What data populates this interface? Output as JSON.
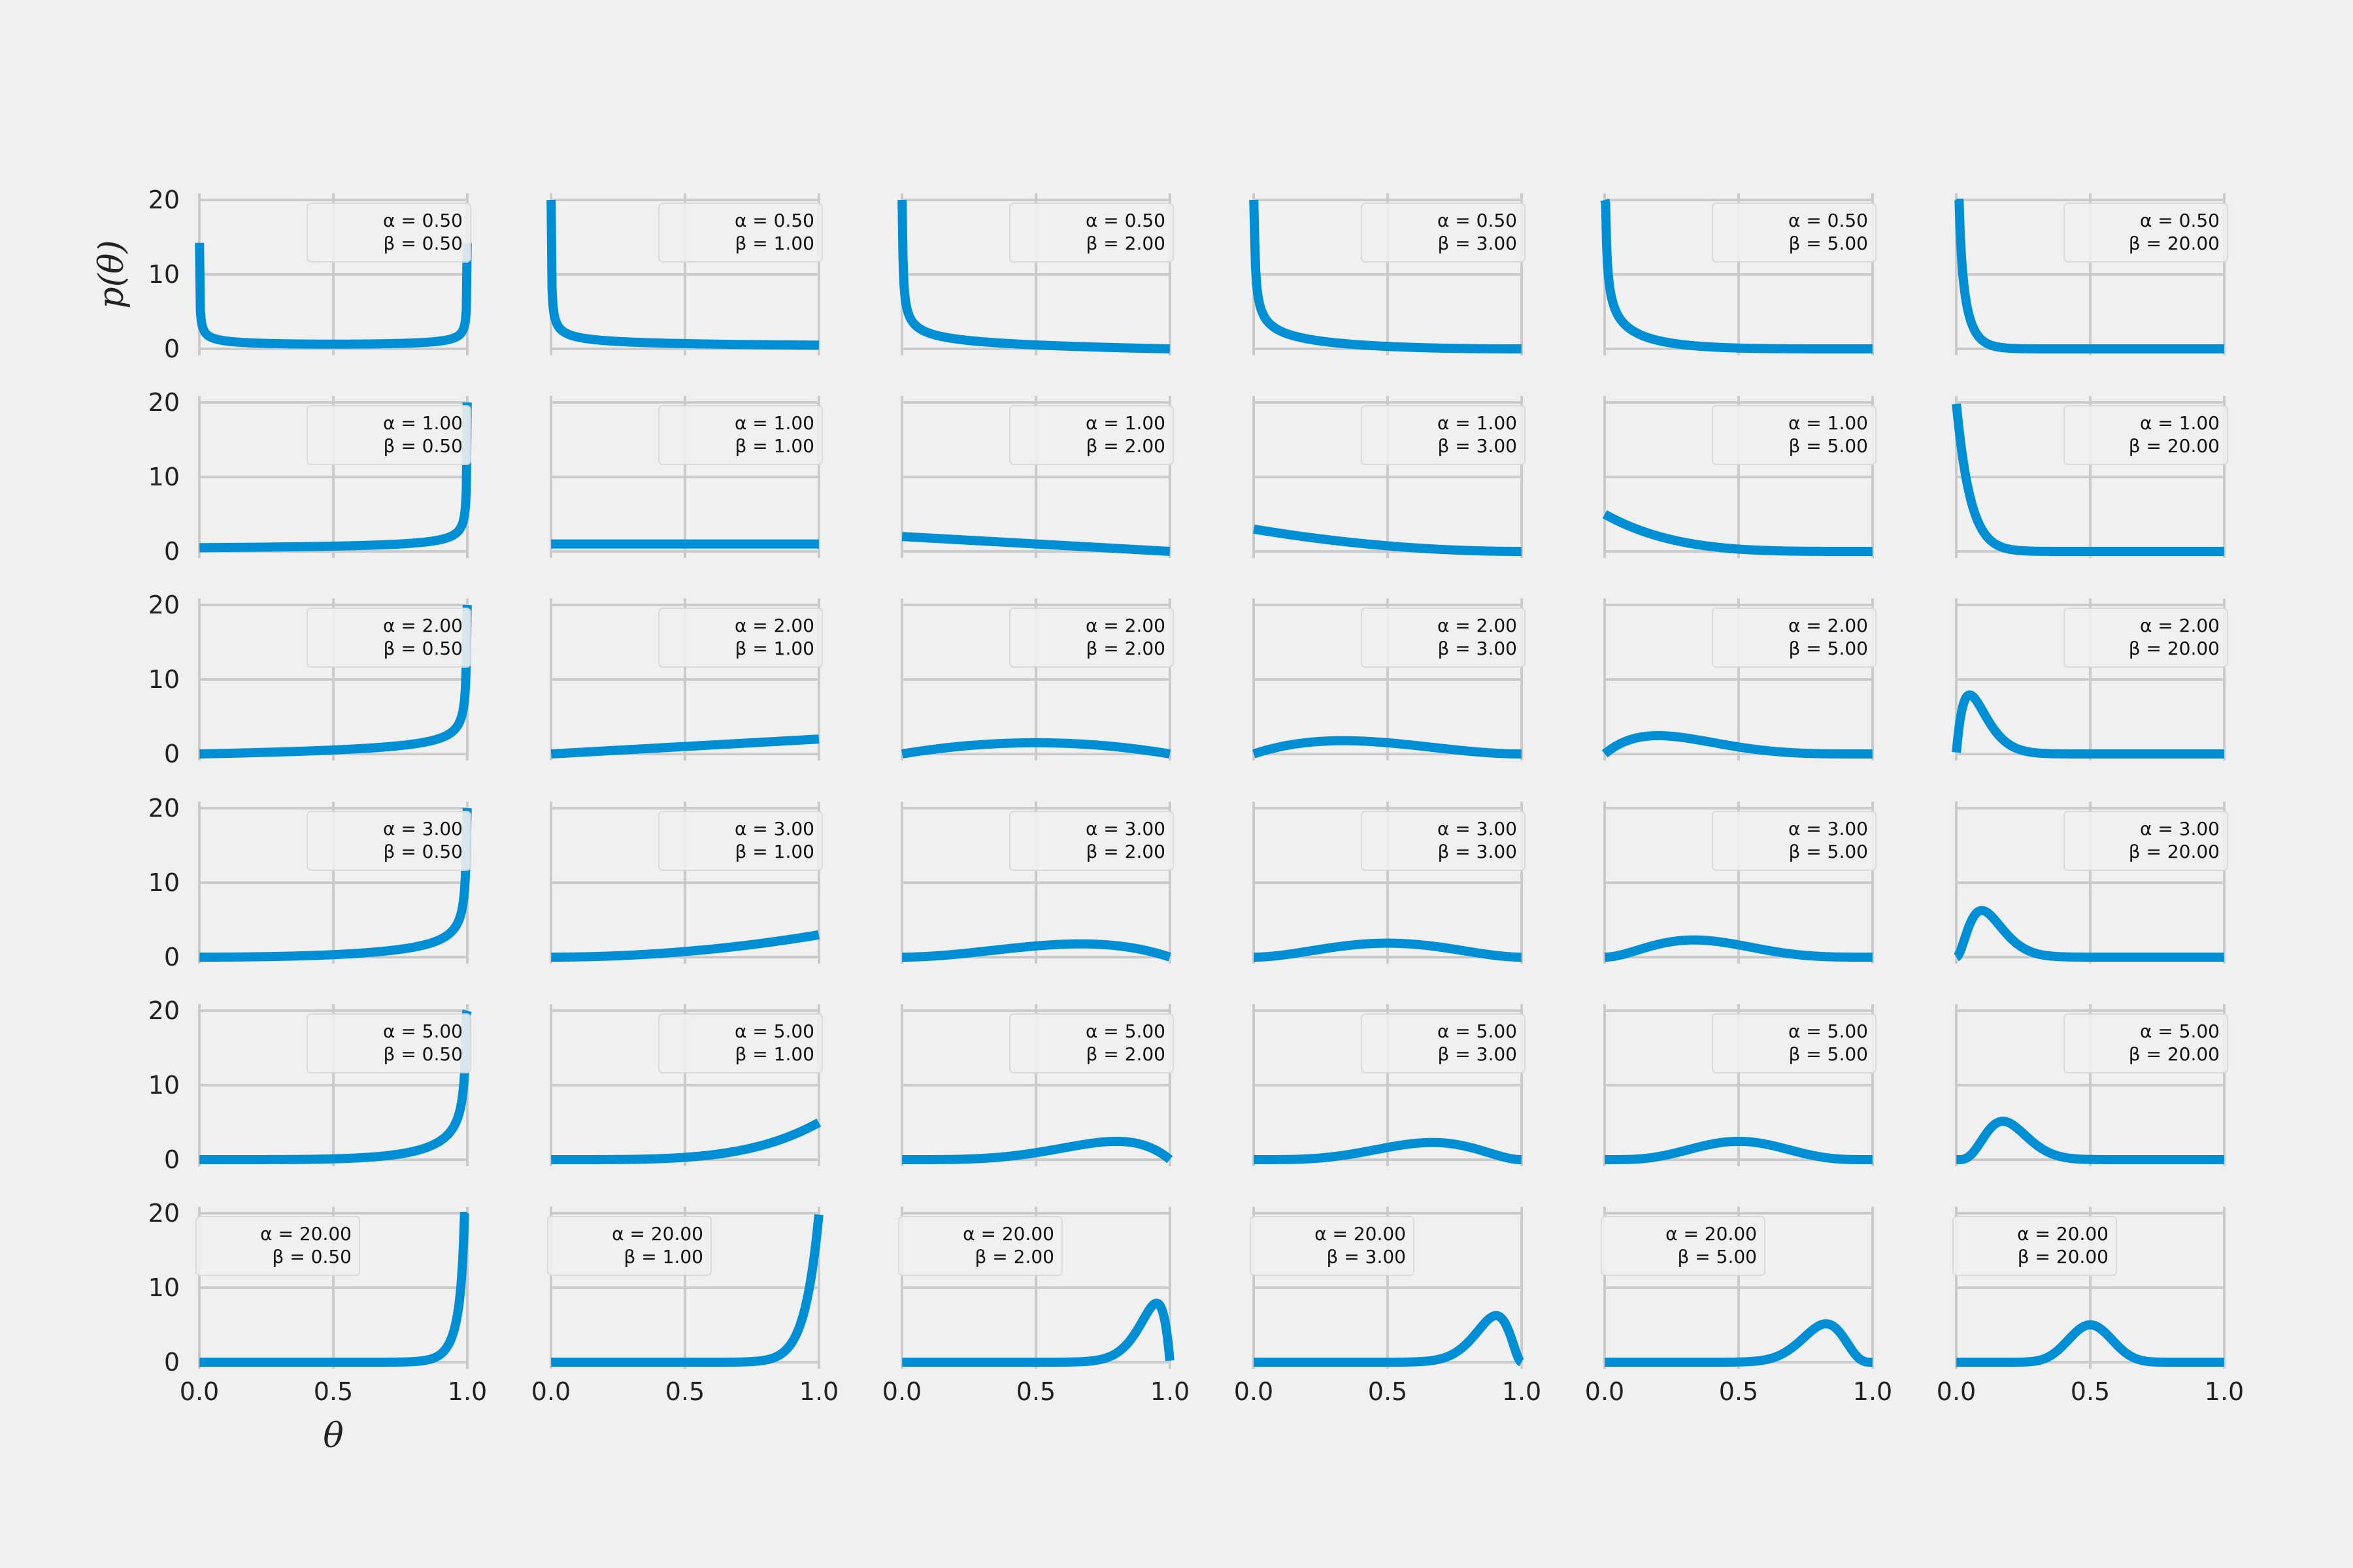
{
  "figure": {
    "xlabel": "θ",
    "ylabel": "p(θ)",
    "line_color": "#008fd5",
    "background": "#f0f0f0",
    "grid_color": "#cbcbcb"
  },
  "chart_data": {
    "type": "line",
    "grid": true,
    "rows": 6,
    "cols": 6,
    "sharex": true,
    "sharey": true,
    "xlim": [
      0,
      1
    ],
    "ylim": [
      0,
      20
    ],
    "xticks": [
      0.0,
      0.5,
      1.0
    ],
    "xtick_labels": [
      "0.0",
      "0.5",
      "1.0"
    ],
    "yticks": [
      0,
      10,
      20
    ],
    "ytick_labels": [
      "0",
      "10",
      "20"
    ],
    "alpha_values": [
      0.5,
      1,
      2,
      3,
      5,
      20
    ],
    "beta_values": [
      0.5,
      1,
      2,
      3,
      5,
      20
    ],
    "legend_placement": "upper right (bottom row: upper left)",
    "panels": [
      {
        "alpha_label": "α = 0.50",
        "beta_label": "β = 0.50"
      },
      {
        "alpha_label": "α = 0.50",
        "beta_label": "β = 1.00"
      },
      {
        "alpha_label": "α = 0.50",
        "beta_label": "β = 2.00"
      },
      {
        "alpha_label": "α = 0.50",
        "beta_label": "β = 3.00"
      },
      {
        "alpha_label": "α = 0.50",
        "beta_label": "β = 5.00"
      },
      {
        "alpha_label": "α = 0.50",
        "beta_label": "β = 20.00"
      },
      {
        "alpha_label": "α = 1.00",
        "beta_label": "β = 0.50"
      },
      {
        "alpha_label": "α = 1.00",
        "beta_label": "β = 1.00"
      },
      {
        "alpha_label": "α = 1.00",
        "beta_label": "β = 2.00"
      },
      {
        "alpha_label": "α = 1.00",
        "beta_label": "β = 3.00"
      },
      {
        "alpha_label": "α = 1.00",
        "beta_label": "β = 5.00"
      },
      {
        "alpha_label": "α = 1.00",
        "beta_label": "β = 20.00"
      },
      {
        "alpha_label": "α = 2.00",
        "beta_label": "β = 0.50"
      },
      {
        "alpha_label": "α = 2.00",
        "beta_label": "β = 1.00"
      },
      {
        "alpha_label": "α = 2.00",
        "beta_label": "β = 2.00"
      },
      {
        "alpha_label": "α = 2.00",
        "beta_label": "β = 3.00"
      },
      {
        "alpha_label": "α = 2.00",
        "beta_label": "β = 5.00"
      },
      {
        "alpha_label": "α = 2.00",
        "beta_label": "β = 20.00"
      },
      {
        "alpha_label": "α = 3.00",
        "beta_label": "β = 0.50"
      },
      {
        "alpha_label": "α = 3.00",
        "beta_label": "β = 1.00"
      },
      {
        "alpha_label": "α = 3.00",
        "beta_label": "β = 2.00"
      },
      {
        "alpha_label": "α = 3.00",
        "beta_label": "β = 3.00"
      },
      {
        "alpha_label": "α = 3.00",
        "beta_label": "β = 5.00"
      },
      {
        "alpha_label": "α = 3.00",
        "beta_label": "β = 20.00"
      },
      {
        "alpha_label": "α = 5.00",
        "beta_label": "β = 0.50"
      },
      {
        "alpha_label": "α = 5.00",
        "beta_label": "β = 1.00"
      },
      {
        "alpha_label": "α = 5.00",
        "beta_label": "β = 2.00"
      },
      {
        "alpha_label": "α = 5.00",
        "beta_label": "β = 3.00"
      },
      {
        "alpha_label": "α = 5.00",
        "beta_label": "β = 5.00"
      },
      {
        "alpha_label": "α = 5.00",
        "beta_label": "β = 20.00"
      },
      {
        "alpha_label": "α = 20.00",
        "beta_label": "β = 0.50"
      },
      {
        "alpha_label": "α = 20.00",
        "beta_label": "β = 1.00"
      },
      {
        "alpha_label": "α = 20.00",
        "beta_label": "β = 2.00"
      },
      {
        "alpha_label": "α = 20.00",
        "beta_label": "β = 3.00"
      },
      {
        "alpha_label": "α = 20.00",
        "beta_label": "β = 5.00"
      },
      {
        "alpha_label": "α = 20.00",
        "beta_label": "β = 20.00"
      }
    ]
  }
}
